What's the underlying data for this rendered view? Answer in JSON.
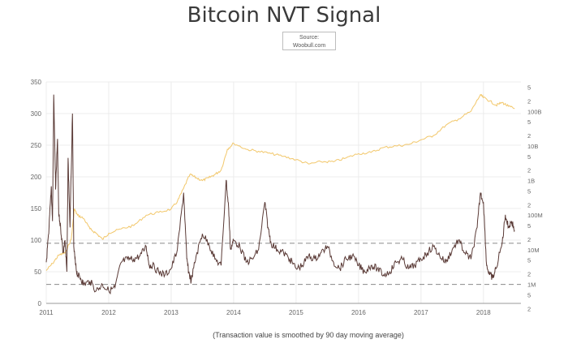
{
  "title": "Bitcoin NVT Signal",
  "source": {
    "line1": "Source:",
    "line2": "Woobull.com"
  },
  "footnote": "(Transaction value is smoothed by 90 day moving average)",
  "colors": {
    "nvt": "#5a3a36",
    "market_cap": "#f2c76a",
    "threshold": "#8a8a8a",
    "grid": "#ececec",
    "axis": "#999999"
  },
  "chart_data": {
    "type": "line",
    "title": "Bitcoin NVT Signal",
    "xlabel": "",
    "ylabel": "",
    "xlim": [
      2011.0,
      2018.6
    ],
    "ylim": [
      0,
      350
    ],
    "x_ticks": [
      "2011",
      "2012",
      "2013",
      "2014",
      "2015",
      "2016",
      "2017",
      "2018"
    ],
    "y_ticks": [
      0,
      50,
      100,
      150,
      200,
      250,
      300,
      350
    ],
    "right_axis": {
      "scale": "log",
      "labels": [
        "2",
        "5",
        "1M",
        "2",
        "5",
        "10M",
        "2",
        "5",
        "100M",
        "2",
        "5",
        "1B",
        "2",
        "5",
        "10B",
        "2",
        "5",
        "100B",
        "2",
        "5"
      ]
    },
    "thresholds": [
      95,
      30
    ],
    "grid": true,
    "legend": "none",
    "series": [
      {
        "axis": "left",
        "x": [
          2011.0,
          2011.04,
          2011.08,
          2011.1,
          2011.12,
          2011.15,
          2011.18,
          2011.2,
          2011.23,
          2011.27,
          2011.3,
          2011.33,
          2011.35,
          2011.38,
          2011.42,
          2011.44,
          2011.47,
          2011.5,
          2011.55,
          2011.6,
          2011.7,
          2011.8,
          2011.9,
          2012.0,
          2012.1,
          2012.2,
          2012.3,
          2012.4,
          2012.5,
          2012.6,
          2012.65,
          2012.7,
          2012.8,
          2012.9,
          2013.0,
          2013.1,
          2013.2,
          2013.25,
          2013.28,
          2013.32,
          2013.4,
          2013.5,
          2013.6,
          2013.7,
          2013.8,
          2013.88,
          2013.92,
          2013.95,
          2014.0,
          2014.1,
          2014.2,
          2014.3,
          2014.4,
          2014.5,
          2014.55,
          2014.6,
          2014.7,
          2014.8,
          2014.9,
          2015.0,
          2015.1,
          2015.2,
          2015.3,
          2015.4,
          2015.5,
          2015.6,
          2015.7,
          2015.8,
          2015.9,
          2016.0,
          2016.1,
          2016.2,
          2016.3,
          2016.4,
          2016.5,
          2016.6,
          2016.7,
          2016.8,
          2016.9,
          2017.0,
          2017.1,
          2017.2,
          2017.3,
          2017.4,
          2017.5,
          2017.6,
          2017.7,
          2017.8,
          2017.9,
          2017.95,
          2018.0,
          2018.05,
          2018.1,
          2018.15,
          2018.2,
          2018.3,
          2018.35,
          2018.4,
          2018.45,
          2018.5
        ],
        "y": [
          65,
          110,
          185,
          130,
          330,
          180,
          260,
          140,
          120,
          80,
          100,
          50,
          230,
          120,
          300,
          90,
          60,
          45,
          40,
          30,
          35,
          20,
          30,
          20,
          25,
          65,
          70,
          70,
          75,
          90,
          60,
          60,
          50,
          45,
          55,
          85,
          175,
          70,
          50,
          35,
          75,
          110,
          95,
          70,
          60,
          195,
          150,
          85,
          100,
          90,
          65,
          70,
          85,
          160,
          120,
          95,
          85,
          80,
          70,
          55,
          60,
          75,
          70,
          80,
          90,
          65,
          55,
          70,
          75,
          60,
          50,
          60,
          55,
          45,
          50,
          65,
          70,
          55,
          60,
          70,
          80,
          90,
          75,
          65,
          85,
          100,
          80,
          70,
          120,
          175,
          160,
          60,
          45,
          40,
          55,
          95,
          140,
          120,
          130,
          115
        ]
      },
      {
        "axis": "right",
        "x": [
          2011.0,
          2011.1,
          2011.2,
          2011.3,
          2011.4,
          2011.45,
          2011.5,
          2011.6,
          2011.7,
          2011.8,
          2011.9,
          2012.0,
          2012.2,
          2012.4,
          2012.6,
          2012.8,
          2013.0,
          2013.1,
          2013.2,
          2013.3,
          2013.4,
          2013.5,
          2013.6,
          2013.7,
          2013.8,
          2013.9,
          2014.0,
          2014.2,
          2014.4,
          2014.6,
          2014.8,
          2015.0,
          2015.2,
          2015.4,
          2015.6,
          2015.8,
          2016.0,
          2016.2,
          2016.4,
          2016.6,
          2016.8,
          2017.0,
          2017.2,
          2017.4,
          2017.6,
          2017.8,
          2017.95,
          2018.0,
          2018.1,
          2018.2,
          2018.3,
          2018.4,
          2018.5
        ],
        "y": [
          2500000,
          4000000,
          7000000,
          8000000,
          20000000,
          150000000,
          100000000,
          80000000,
          40000000,
          30000000,
          20000000,
          30000000,
          40000000,
          50000000,
          100000000,
          120000000,
          150000000,
          250000000,
          600000000,
          1500000000,
          1200000000,
          1000000000,
          1200000000,
          1500000000,
          2000000000,
          8000000000,
          12000000000,
          8000000000,
          7000000000,
          6000000000,
          5000000000,
          4000000000,
          3000000000,
          3500000000,
          3500000000,
          4500000000,
          6000000000,
          6500000000,
          9000000000,
          10000000000,
          11000000000,
          15000000000,
          20000000000,
          40000000000,
          60000000000,
          100000000000,
          300000000000,
          250000000000,
          200000000000,
          150000000000,
          180000000000,
          140000000000,
          120000000000
        ]
      }
    ]
  }
}
